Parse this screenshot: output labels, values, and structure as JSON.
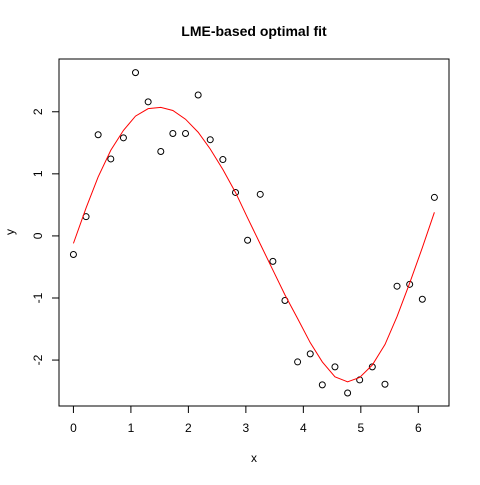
{
  "chart_data": {
    "type": "scatter",
    "title": "LME-based optimal fit",
    "x_label": "x",
    "y_label": "y",
    "x": [
      0,
      0.22,
      0.43,
      0.65,
      0.87,
      1.08,
      1.3,
      1.52,
      1.73,
      1.95,
      2.17,
      2.38,
      2.6,
      2.82,
      3.03,
      3.25,
      3.47,
      3.68,
      3.9,
      4.12,
      4.33,
      4.55,
      4.77,
      4.98,
      5.2,
      5.42,
      5.63,
      5.85,
      6.07,
      6.28
    ],
    "series": [
      {
        "mark": "points",
        "color": "#000000",
        "values": [
          -0.3,
          0.31,
          1.63,
          1.24,
          1.58,
          2.63,
          2.16,
          1.36,
          1.65,
          1.65,
          2.27,
          1.55,
          1.23,
          0.7,
          -0.07,
          0.67,
          -0.41,
          -1.04,
          -2.03,
          -1.9,
          -2.4,
          -2.11,
          -2.53,
          -2.32,
          -2.11,
          -2.39,
          -0.81,
          -0.78,
          -1.02,
          0.62
        ]
      },
      {
        "mark": "line",
        "color": "#ff0000",
        "values": [
          -0.12,
          0.45,
          0.95,
          1.38,
          1.7,
          1.93,
          2.05,
          2.07,
          2.02,
          1.88,
          1.67,
          1.4,
          1.07,
          0.7,
          0.29,
          -0.13,
          -0.55,
          -0.95,
          -1.33,
          -1.72,
          -2.03,
          -2.27,
          -2.35,
          -2.28,
          -2.08,
          -1.75,
          -1.3,
          -0.76,
          -0.19,
          0.38
        ]
      }
    ],
    "xlim": [
      -0.251,
      6.534
    ],
    "ylim": [
      -2.74,
      2.85
    ],
    "xticks": [
      0,
      1,
      2,
      3,
      4,
      5,
      6
    ],
    "yticks": [
      -2,
      -1,
      0,
      1,
      2
    ]
  }
}
